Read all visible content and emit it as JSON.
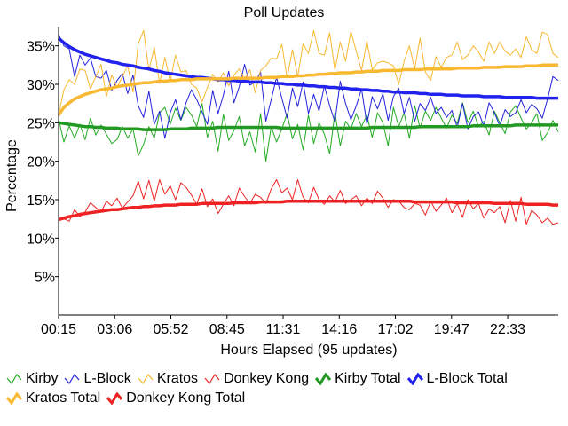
{
  "chart_data": {
    "type": "line",
    "title": "Poll Updates",
    "xlabel": "Hours Elapsed (95 updates)",
    "ylabel": "Percentage",
    "x_tick_labels": [
      "00:15",
      "03:06",
      "05:52",
      "08:45",
      "11:31",
      "14:16",
      "17:02",
      "19:47",
      "22:33"
    ],
    "y_tick_labels": [
      "5%",
      "10%",
      "15%",
      "20%",
      "25%",
      "30%",
      "35%"
    ],
    "y_ticks": [
      5,
      10,
      15,
      20,
      25,
      30,
      35
    ],
    "ylim": [
      0,
      37.5
    ],
    "n_updates": 95,
    "grid": false,
    "legend_position": "bottom",
    "series": [
      {
        "name": "Kirby",
        "color": "#22aa22",
        "style": "thin",
        "values": [
          25.5,
          22.5,
          24.6,
          23.0,
          24.8,
          22.8,
          25.6,
          23.4,
          24.7,
          23.5,
          22.3,
          22.8,
          24.5,
          23.0,
          24.2,
          20.7,
          22.2,
          24.5,
          23.0,
          26.3,
          27.0,
          24.8,
          26.9,
          25.3,
          27.0,
          26.0,
          24.5,
          27.5,
          23.1,
          25.2,
          21.3,
          26.1,
          22.7,
          24.0,
          25.8,
          22.0,
          23.8,
          21.2,
          26.2,
          20.0,
          24.5,
          22.5,
          24.2,
          26.2,
          22.9,
          24.8,
          21.5,
          26.0,
          22.3,
          25.0,
          23.5,
          21.0,
          26.3,
          22.0,
          25.2,
          24.2,
          26.2,
          24.5,
          26.0,
          23.1,
          26.3,
          25.0,
          22.0,
          27.0,
          24.5,
          26.3,
          23.0,
          27.2,
          24.3,
          26.5,
          25.3,
          27.0,
          25.6,
          24.3,
          26.0,
          24.9,
          27.6,
          25.0,
          26.5,
          24.5,
          25.2,
          23.4,
          26.5,
          25.0,
          23.6,
          26.4,
          27.2,
          25.6,
          24.2,
          25.0,
          26.2,
          22.7,
          23.7,
          25.3,
          23.8
        ]
      },
      {
        "name": "L-Block",
        "color": "#2222dd",
        "style": "thin",
        "values": [
          36.5,
          35.0,
          34.6,
          31.0,
          33.8,
          32.5,
          33.4,
          31.0,
          30.8,
          31.8,
          29.2,
          30.5,
          31.4,
          28.8,
          31.2,
          27.2,
          25.7,
          29.1,
          24.8,
          26.5,
          23.0,
          26.3,
          28.0,
          25.4,
          27.6,
          29.3,
          28.0,
          26.4,
          24.8,
          29.2,
          26.2,
          28.6,
          31.7,
          27.6,
          29.7,
          32.6,
          29.9,
          30.3,
          31.6,
          25.2,
          28.0,
          30.9,
          28.2,
          25.6,
          29.5,
          27.1,
          30.3,
          26.2,
          28.7,
          26.5,
          29.8,
          27.2,
          25.1,
          30.4,
          27.5,
          25.4,
          27.2,
          29.4,
          24.8,
          28.4,
          26.8,
          28.8,
          25.3,
          28.4,
          29.5,
          26.2,
          28.3,
          25.2,
          27.5,
          26.6,
          28.3,
          26.2,
          27.0,
          25.7,
          26.6,
          24.4,
          27.5,
          24.2,
          25.8,
          26.4,
          24.6,
          27.6,
          26.3,
          24.6,
          26.7,
          25.8,
          26.3,
          28.0,
          26.3,
          27.4,
          26.8,
          25.6,
          28.1,
          31.0,
          30.5
        ]
      },
      {
        "name": "Kratos",
        "color": "#f8b830",
        "style": "thin",
        "values": [
          26.0,
          29.3,
          30.6,
          30.0,
          32.0,
          31.8,
          29.4,
          31.0,
          32.6,
          28.4,
          31.2,
          29.6,
          31.0,
          32.4,
          29.0,
          35.3,
          37.0,
          31.8,
          34.8,
          30.1,
          33.5,
          30.4,
          33.8,
          31.6,
          31.8,
          30.0,
          29.5,
          27.7,
          29.6,
          31.3,
          30.3,
          31.5,
          29.8,
          31.2,
          32.0,
          30.6,
          31.9,
          28.9,
          31.8,
          32.4,
          33.4,
          33.3,
          35.2,
          30.8,
          34.5,
          31.0,
          35.3,
          34.0,
          37.0,
          34.0,
          33.8,
          36.7,
          31.8,
          35.5,
          33.0,
          36.9,
          34.3,
          31.8,
          35.6,
          31.9,
          32.8,
          33.0,
          32.8,
          32.4,
          30.0,
          33.0,
          35.0,
          32.0,
          36.0,
          31.6,
          30.5,
          33.6,
          32.2,
          33.5,
          33.8,
          35.5,
          33.2,
          33.8,
          35.0,
          34.2,
          33.0,
          35.5,
          34.0,
          35.5,
          34.3,
          33.8,
          34.6,
          33.5,
          36.2,
          34.5,
          34.0,
          36.8,
          36.5,
          34.0,
          33.5
        ]
      },
      {
        "name": "Donkey Kong",
        "color": "#ee2222",
        "style": "thin",
        "values": [
          12.3,
          12.5,
          12.2,
          13.7,
          12.8,
          13.4,
          14.6,
          14.0,
          13.4,
          14.8,
          14.2,
          15.2,
          13.9,
          14.7,
          15.5,
          17.4,
          15.1,
          17.5,
          14.8,
          17.6,
          15.7,
          16.8,
          15.0,
          17.2,
          16.6,
          15.6,
          14.4,
          16.4,
          14.1,
          15.1,
          13.2,
          14.4,
          15.5,
          14.2,
          16.5,
          15.4,
          14.5,
          15.7,
          15.3,
          14.5,
          16.4,
          17.6,
          15.9,
          16.5,
          15.0,
          17.6,
          15.3,
          14.6,
          16.6,
          15.0,
          14.4,
          15.5,
          14.7,
          16.2,
          14.5,
          15.0,
          15.5,
          14.2,
          15.2,
          14.5,
          16.1,
          15.2,
          14.0,
          15.0,
          14.8,
          14.0,
          13.7,
          14.5,
          14.3,
          13.0,
          14.8,
          13.5,
          14.3,
          15.2,
          13.3,
          14.5,
          12.7,
          15.0,
          13.8,
          14.5,
          12.6,
          13.8,
          13.3,
          14.1,
          12.0,
          14.9,
          12.2,
          15.3,
          11.8,
          13.6,
          13.0,
          12.0,
          12.6,
          11.8,
          12.0
        ]
      },
      {
        "name": "Kirby Total",
        "color": "#229922",
        "style": "thick",
        "values": [
          25.0,
          24.9,
          24.8,
          24.7,
          24.6,
          24.5,
          24.5,
          24.4,
          24.4,
          24.3,
          24.3,
          24.3,
          24.2,
          24.2,
          24.2,
          24.2,
          24.1,
          24.1,
          24.1,
          24.1,
          24.1,
          24.2,
          24.2,
          24.2,
          24.2,
          24.3,
          24.3,
          24.3,
          24.3,
          24.3,
          24.4,
          24.4,
          24.4,
          24.4,
          24.4,
          24.4,
          24.4,
          24.4,
          24.4,
          24.4,
          24.4,
          24.4,
          24.3,
          24.3,
          24.3,
          24.3,
          24.3,
          24.3,
          24.3,
          24.3,
          24.3,
          24.3,
          24.3,
          24.3,
          24.3,
          24.3,
          24.3,
          24.3,
          24.3,
          24.4,
          24.4,
          24.4,
          24.4,
          24.4,
          24.4,
          24.4,
          24.4,
          24.4,
          24.5,
          24.5,
          24.5,
          24.5,
          24.5,
          24.5,
          24.5,
          24.5,
          24.5,
          24.5,
          24.6,
          24.6,
          24.6,
          24.6,
          24.6,
          24.6,
          24.6,
          24.6,
          24.7,
          24.7,
          24.7,
          24.7,
          24.7,
          24.7,
          24.7,
          24.7,
          24.7
        ]
      },
      {
        "name": "L-Block Total",
        "color": "#2222ee",
        "style": "thick",
        "values": [
          36.0,
          35.4,
          34.9,
          34.5,
          34.2,
          33.9,
          33.7,
          33.5,
          33.3,
          33.1,
          32.9,
          32.8,
          32.6,
          32.5,
          32.4,
          32.2,
          32.1,
          32.0,
          31.8,
          31.7,
          31.5,
          31.4,
          31.3,
          31.2,
          31.1,
          31.0,
          30.9,
          30.9,
          30.8,
          30.7,
          30.6,
          30.6,
          30.5,
          30.5,
          30.4,
          30.4,
          30.3,
          30.3,
          30.3,
          30.2,
          30.2,
          30.1,
          30.1,
          30.0,
          30.0,
          29.9,
          29.9,
          29.8,
          29.8,
          29.7,
          29.7,
          29.6,
          29.6,
          29.5,
          29.5,
          29.4,
          29.4,
          29.3,
          29.3,
          29.2,
          29.2,
          29.1,
          29.1,
          29.0,
          29.0,
          28.9,
          28.9,
          28.9,
          28.8,
          28.8,
          28.7,
          28.7,
          28.7,
          28.6,
          28.6,
          28.6,
          28.5,
          28.5,
          28.5,
          28.5,
          28.4,
          28.4,
          28.4,
          28.4,
          28.3,
          28.3,
          28.3,
          28.3,
          28.3,
          28.3,
          28.2,
          28.2,
          28.2,
          28.2,
          28.2
        ]
      },
      {
        "name": "Kratos Total",
        "color": "#f8b830",
        "style": "thick",
        "values": [
          26.0,
          27.0,
          27.6,
          28.1,
          28.4,
          28.7,
          28.9,
          29.1,
          29.3,
          29.4,
          29.5,
          29.7,
          29.8,
          29.9,
          30.0,
          30.1,
          30.2,
          30.2,
          30.3,
          30.4,
          30.4,
          30.5,
          30.5,
          30.6,
          30.6,
          30.6,
          30.7,
          30.7,
          30.7,
          30.7,
          30.7,
          30.7,
          30.7,
          30.8,
          30.8,
          30.8,
          30.8,
          30.8,
          30.8,
          30.9,
          30.9,
          30.9,
          31.0,
          31.0,
          31.0,
          31.1,
          31.1,
          31.2,
          31.2,
          31.3,
          31.3,
          31.4,
          31.4,
          31.5,
          31.5,
          31.5,
          31.6,
          31.6,
          31.7,
          31.7,
          31.7,
          31.8,
          31.8,
          31.8,
          31.8,
          31.9,
          31.9,
          31.9,
          31.9,
          32.0,
          32.0,
          32.0,
          32.0,
          32.0,
          32.0,
          32.1,
          32.1,
          32.1,
          32.1,
          32.1,
          32.2,
          32.2,
          32.2,
          32.2,
          32.3,
          32.3,
          32.3,
          32.3,
          32.4,
          32.4,
          32.4,
          32.5,
          32.5,
          32.5,
          32.5
        ]
      },
      {
        "name": "Donkey Kong Total",
        "color": "#ee2222",
        "style": "thick",
        "values": [
          12.4,
          12.6,
          12.8,
          12.9,
          13.1,
          13.2,
          13.3,
          13.4,
          13.5,
          13.6,
          13.7,
          13.7,
          13.8,
          13.9,
          14.0,
          14.0,
          14.1,
          14.1,
          14.2,
          14.2,
          14.3,
          14.3,
          14.3,
          14.4,
          14.4,
          14.4,
          14.4,
          14.5,
          14.5,
          14.5,
          14.5,
          14.5,
          14.5,
          14.6,
          14.6,
          14.6,
          14.6,
          14.6,
          14.7,
          14.7,
          14.7,
          14.7,
          14.7,
          14.8,
          14.8,
          14.8,
          14.8,
          14.8,
          14.8,
          14.8,
          14.8,
          14.8,
          14.8,
          14.8,
          14.8,
          14.8,
          14.8,
          14.8,
          14.8,
          14.8,
          14.8,
          14.8,
          14.8,
          14.8,
          14.8,
          14.8,
          14.8,
          14.7,
          14.7,
          14.7,
          14.7,
          14.7,
          14.7,
          14.7,
          14.7,
          14.6,
          14.6,
          14.6,
          14.6,
          14.6,
          14.6,
          14.6,
          14.5,
          14.5,
          14.5,
          14.5,
          14.5,
          14.5,
          14.4,
          14.4,
          14.4,
          14.4,
          14.4,
          14.3,
          14.3
        ]
      }
    ]
  }
}
